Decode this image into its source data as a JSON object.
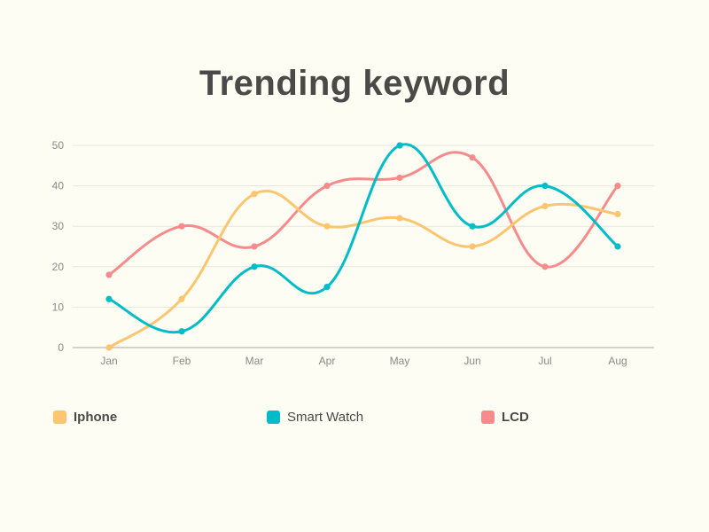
{
  "chart_data": {
    "type": "line",
    "title": "Trending keyword",
    "xlabel": "",
    "ylabel": "",
    "categories": [
      "Jan",
      "Feb",
      "Mar",
      "Apr",
      "May",
      "Jun",
      "Jul",
      "Aug"
    ],
    "ylim": [
      0,
      50
    ],
    "yticks": [
      0,
      10,
      20,
      30,
      40,
      50
    ],
    "grid": true,
    "legend_position": "bottom",
    "series": [
      {
        "name": "Iphone",
        "color": "#fcc56f",
        "values": [
          0,
          12,
          38,
          30,
          32,
          25,
          35,
          33
        ],
        "bold": true
      },
      {
        "name": "Smart Watch",
        "color": "#00bcc8",
        "values": [
          12,
          4,
          20,
          15,
          50,
          30,
          40,
          25
        ],
        "bold": false
      },
      {
        "name": "LCD",
        "color": "#f78b8b",
        "values": [
          18,
          30,
          25,
          40,
          42,
          47,
          20,
          40
        ],
        "bold": true
      }
    ]
  }
}
